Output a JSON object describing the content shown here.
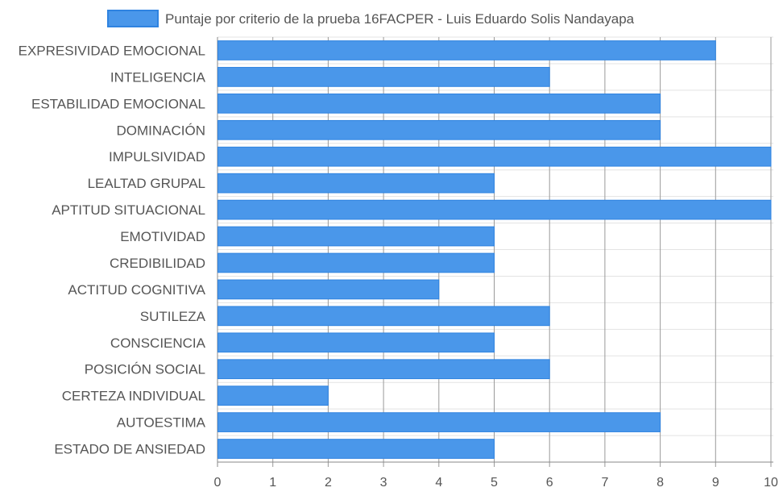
{
  "chart_data": {
    "type": "bar",
    "orientation": "horizontal",
    "categories": [
      "EXPRESIVIDAD EMOCIONAL",
      "INTELIGENCIA",
      "ESTABILIDAD EMOCIONAL",
      "DOMINACIÓN",
      "IMPULSIVIDAD",
      "LEALTAD GRUPAL",
      "APTITUD SITUACIONAL",
      "EMOTIVIDAD",
      "CREDIBILIDAD",
      "ACTITUD COGNITIVA",
      "SUTILEZA",
      "CONSCIENCIA",
      "POSICIÓN SOCIAL",
      "CERTEZA INDIVIDUAL",
      "AUTOESTIMA",
      "ESTADO DE ANSIEDAD"
    ],
    "series": [
      {
        "name": "Puntaje por criterio de la prueba 16FACPER - Luis Eduardo Solis Nandayapa",
        "values": [
          9,
          6,
          8,
          8,
          10,
          5,
          10,
          5,
          5,
          4,
          6,
          5,
          6,
          2,
          8,
          5
        ]
      }
    ],
    "xlim": [
      0,
      10
    ],
    "xticks": [
      "0",
      "1",
      "2",
      "3",
      "4",
      "5",
      "6",
      "7",
      "8",
      "9",
      "10"
    ],
    "grid": true,
    "legend_position": "top",
    "colors": {
      "bar_fill": "#4a97ea",
      "bar_stroke": "#2f83e0",
      "grid": "#e3e3e3",
      "grid_major": "#9a9a9a",
      "axis": "#888888",
      "label": "#555555"
    }
  }
}
